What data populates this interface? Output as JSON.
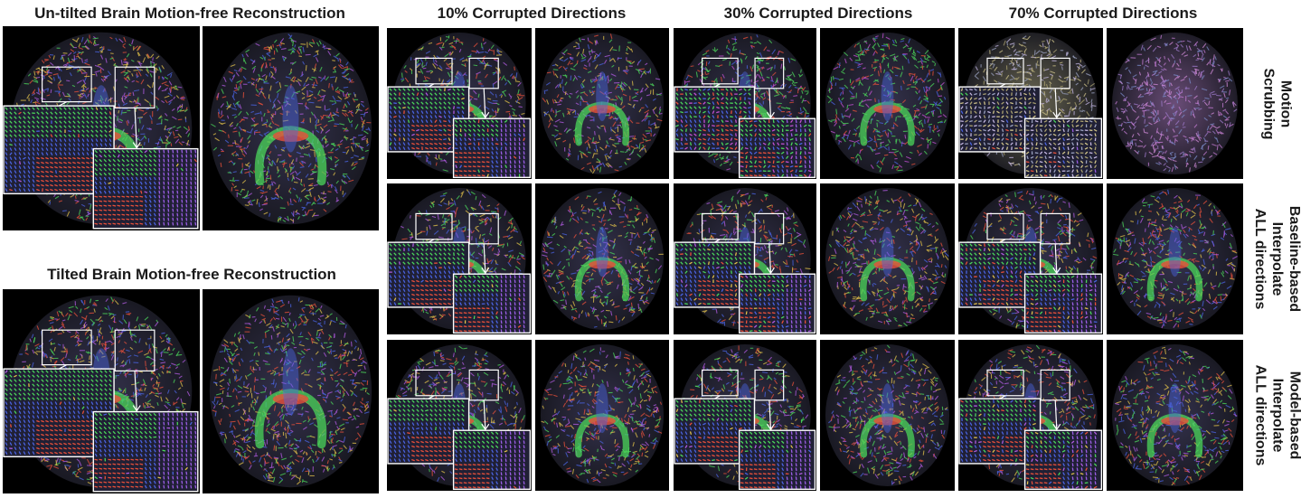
{
  "titles": {
    "untilted": "Un-tilted Brain Motion-free Reconstruction",
    "tilted": "Tilted Brain Motion-free Reconstruction",
    "col10": "10% Corrupted Directions",
    "col30": "30% Corrupted Directions",
    "col70": "70% Corrupted Directions"
  },
  "row_labels": {
    "motion_scrubbing": [
      "Motion",
      "Scrubbing"
    ],
    "baseline": [
      "Baseline-based",
      "Interpolate",
      "ALL directions"
    ],
    "model": [
      "Model-based",
      "Interpolate",
      "ALL directions"
    ]
  },
  "colors": {
    "background": "#000000",
    "inset_border": "#ffffff",
    "fiber_red": "#e8503a",
    "fiber_green": "#4bd65a",
    "fiber_blue": "#4a63e0"
  }
}
